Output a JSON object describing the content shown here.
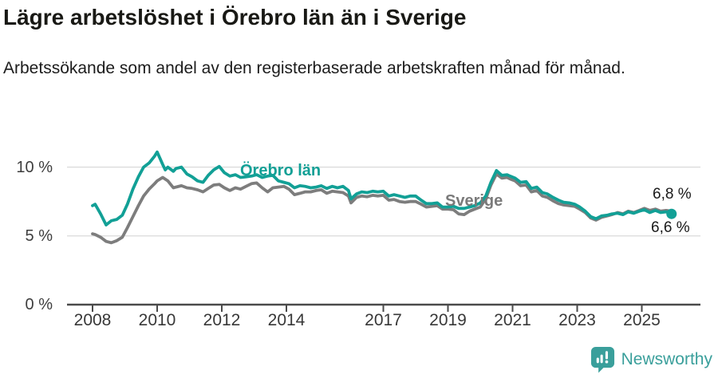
{
  "title": "Lägre arbetslöshet i Örebro län än i Sverige",
  "subtitle": "Arbetssökande som andel av den registerbaserade arbetskraften månad för månad.",
  "footer": {
    "brand": "Newsworthy"
  },
  "colors": {
    "accent_teal": "#12a096",
    "line_gray": "#7d7d7d",
    "grid": "#dcdcdc",
    "axis": "#4a4a4a",
    "text": "#191919",
    "brand_teal": "#3a9f9b"
  },
  "chart_data": {
    "type": "line",
    "unit": "%",
    "grid": "horizontal",
    "legend_position": "inline-labels",
    "x_axis": {
      "ticks": [
        2008,
        2010,
        2012,
        2014,
        2017,
        2019,
        2021,
        2023,
        2025
      ],
      "range": [
        2007.8,
        2026.1
      ]
    },
    "y_axis": {
      "ticks": [
        {
          "value": 0,
          "label": "0 %"
        },
        {
          "value": 5,
          "label": "5 %"
        },
        {
          "value": 10,
          "label": "10 %"
        }
      ],
      "range": [
        0,
        12.3
      ]
    },
    "series": [
      {
        "name": "Sverige",
        "inline_label": "Sverige",
        "end_label": "6,8 %",
        "end_value": 6.8,
        "color": "#7d7d7d",
        "end_dot": false,
        "points": [
          [
            2008.0,
            5.15
          ],
          [
            2008.08,
            5.1
          ],
          [
            2008.25,
            4.9
          ],
          [
            2008.42,
            4.6
          ],
          [
            2008.58,
            4.5
          ],
          [
            2008.75,
            4.65
          ],
          [
            2008.92,
            4.9
          ],
          [
            2009.08,
            5.6
          ],
          [
            2009.25,
            6.4
          ],
          [
            2009.42,
            7.2
          ],
          [
            2009.58,
            7.9
          ],
          [
            2009.75,
            8.4
          ],
          [
            2009.92,
            8.8
          ],
          [
            2010.0,
            9.0
          ],
          [
            2010.17,
            9.25
          ],
          [
            2010.33,
            9.0
          ],
          [
            2010.5,
            8.5
          ],
          [
            2010.58,
            8.55
          ],
          [
            2010.75,
            8.65
          ],
          [
            2010.92,
            8.5
          ],
          [
            2011.08,
            8.45
          ],
          [
            2011.25,
            8.35
          ],
          [
            2011.42,
            8.2
          ],
          [
            2011.58,
            8.45
          ],
          [
            2011.75,
            8.7
          ],
          [
            2011.92,
            8.75
          ],
          [
            2012.08,
            8.5
          ],
          [
            2012.25,
            8.3
          ],
          [
            2012.42,
            8.5
          ],
          [
            2012.58,
            8.4
          ],
          [
            2012.75,
            8.6
          ],
          [
            2012.92,
            8.8
          ],
          [
            2013.08,
            8.85
          ],
          [
            2013.25,
            8.5
          ],
          [
            2013.42,
            8.2
          ],
          [
            2013.58,
            8.5
          ],
          [
            2013.75,
            8.55
          ],
          [
            2013.92,
            8.6
          ],
          [
            2014.08,
            8.4
          ],
          [
            2014.25,
            8.0
          ],
          [
            2014.42,
            8.1
          ],
          [
            2014.58,
            8.2
          ],
          [
            2014.75,
            8.2
          ],
          [
            2014.92,
            8.3
          ],
          [
            2015.08,
            8.35
          ],
          [
            2015.25,
            8.1
          ],
          [
            2015.42,
            8.25
          ],
          [
            2015.58,
            8.2
          ],
          [
            2015.75,
            8.15
          ],
          [
            2015.92,
            7.9
          ],
          [
            2016.0,
            7.4
          ],
          [
            2016.17,
            7.8
          ],
          [
            2016.33,
            7.9
          ],
          [
            2016.5,
            7.85
          ],
          [
            2016.67,
            7.95
          ],
          [
            2016.83,
            7.9
          ],
          [
            2017.0,
            7.95
          ],
          [
            2017.17,
            7.6
          ],
          [
            2017.33,
            7.65
          ],
          [
            2017.5,
            7.5
          ],
          [
            2017.67,
            7.45
          ],
          [
            2017.83,
            7.5
          ],
          [
            2018.0,
            7.5
          ],
          [
            2018.17,
            7.3
          ],
          [
            2018.33,
            7.1
          ],
          [
            2018.5,
            7.15
          ],
          [
            2018.67,
            7.2
          ],
          [
            2018.83,
            6.95
          ],
          [
            2019.0,
            6.95
          ],
          [
            2019.17,
            6.9
          ],
          [
            2019.33,
            6.6
          ],
          [
            2019.5,
            6.55
          ],
          [
            2019.67,
            6.8
          ],
          [
            2019.83,
            6.95
          ],
          [
            2020.0,
            7.1
          ],
          [
            2020.17,
            7.7
          ],
          [
            2020.33,
            8.7
          ],
          [
            2020.5,
            9.5
          ],
          [
            2020.67,
            9.2
          ],
          [
            2020.83,
            9.25
          ],
          [
            2020.92,
            9.15
          ],
          [
            2021.08,
            9.0
          ],
          [
            2021.25,
            8.65
          ],
          [
            2021.42,
            8.7
          ],
          [
            2021.58,
            8.2
          ],
          [
            2021.75,
            8.3
          ],
          [
            2021.92,
            7.9
          ],
          [
            2022.08,
            7.8
          ],
          [
            2022.25,
            7.55
          ],
          [
            2022.42,
            7.35
          ],
          [
            2022.58,
            7.25
          ],
          [
            2022.75,
            7.2
          ],
          [
            2022.92,
            7.15
          ],
          [
            2023.08,
            6.95
          ],
          [
            2023.25,
            6.7
          ],
          [
            2023.42,
            6.3
          ],
          [
            2023.58,
            6.15
          ],
          [
            2023.75,
            6.35
          ],
          [
            2023.92,
            6.45
          ],
          [
            2024.08,
            6.55
          ],
          [
            2024.25,
            6.7
          ],
          [
            2024.42,
            6.6
          ],
          [
            2024.58,
            6.8
          ],
          [
            2024.75,
            6.7
          ],
          [
            2024.92,
            6.85
          ],
          [
            2025.08,
            7.0
          ],
          [
            2025.25,
            6.85
          ],
          [
            2025.42,
            6.95
          ],
          [
            2025.58,
            6.8
          ],
          [
            2025.75,
            6.85
          ],
          [
            2025.92,
            6.8
          ]
        ]
      },
      {
        "name": "Örebro län",
        "inline_label": "Örebro län",
        "end_label": "6,6 %",
        "end_value": 6.6,
        "color": "#12a096",
        "end_dot": true,
        "points": [
          [
            2008.0,
            7.2
          ],
          [
            2008.08,
            7.3
          ],
          [
            2008.25,
            6.6
          ],
          [
            2008.42,
            5.8
          ],
          [
            2008.58,
            6.1
          ],
          [
            2008.75,
            6.2
          ],
          [
            2008.92,
            6.5
          ],
          [
            2009.08,
            7.3
          ],
          [
            2009.25,
            8.4
          ],
          [
            2009.42,
            9.3
          ],
          [
            2009.58,
            10.0
          ],
          [
            2009.75,
            10.3
          ],
          [
            2009.92,
            10.8
          ],
          [
            2010.0,
            11.1
          ],
          [
            2010.17,
            10.2
          ],
          [
            2010.25,
            9.8
          ],
          [
            2010.33,
            10.0
          ],
          [
            2010.5,
            9.7
          ],
          [
            2010.58,
            9.9
          ],
          [
            2010.75,
            10.0
          ],
          [
            2010.92,
            9.5
          ],
          [
            2011.08,
            9.3
          ],
          [
            2011.25,
            9.0
          ],
          [
            2011.42,
            8.9
          ],
          [
            2011.58,
            9.4
          ],
          [
            2011.75,
            9.8
          ],
          [
            2011.92,
            10.05
          ],
          [
            2012.08,
            9.6
          ],
          [
            2012.25,
            9.35
          ],
          [
            2012.42,
            9.45
          ],
          [
            2012.58,
            9.25
          ],
          [
            2012.75,
            9.3
          ],
          [
            2012.92,
            9.35
          ],
          [
            2013.08,
            9.45
          ],
          [
            2013.25,
            9.25
          ],
          [
            2013.42,
            9.35
          ],
          [
            2013.58,
            9.4
          ],
          [
            2013.75,
            9.0
          ],
          [
            2013.92,
            8.9
          ],
          [
            2014.08,
            8.8
          ],
          [
            2014.25,
            8.5
          ],
          [
            2014.42,
            8.65
          ],
          [
            2014.58,
            8.6
          ],
          [
            2014.75,
            8.5
          ],
          [
            2014.92,
            8.55
          ],
          [
            2015.08,
            8.65
          ],
          [
            2015.25,
            8.45
          ],
          [
            2015.42,
            8.6
          ],
          [
            2015.58,
            8.5
          ],
          [
            2015.75,
            8.6
          ],
          [
            2015.92,
            8.3
          ],
          [
            2016.0,
            7.7
          ],
          [
            2016.17,
            8.05
          ],
          [
            2016.33,
            8.2
          ],
          [
            2016.5,
            8.15
          ],
          [
            2016.67,
            8.25
          ],
          [
            2016.83,
            8.2
          ],
          [
            2017.0,
            8.25
          ],
          [
            2017.17,
            7.9
          ],
          [
            2017.33,
            8.0
          ],
          [
            2017.5,
            7.9
          ],
          [
            2017.67,
            7.8
          ],
          [
            2017.83,
            7.9
          ],
          [
            2018.0,
            7.9
          ],
          [
            2018.17,
            7.6
          ],
          [
            2018.33,
            7.35
          ],
          [
            2018.5,
            7.35
          ],
          [
            2018.67,
            7.4
          ],
          [
            2018.83,
            7.1
          ],
          [
            2019.0,
            7.1
          ],
          [
            2019.17,
            7.15
          ],
          [
            2019.33,
            7.0
          ],
          [
            2019.5,
            7.0
          ],
          [
            2019.67,
            7.1
          ],
          [
            2019.83,
            7.2
          ],
          [
            2020.0,
            7.4
          ],
          [
            2020.17,
            7.9
          ],
          [
            2020.33,
            8.9
          ],
          [
            2020.5,
            9.75
          ],
          [
            2020.67,
            9.4
          ],
          [
            2020.83,
            9.45
          ],
          [
            2020.92,
            9.35
          ],
          [
            2021.08,
            9.2
          ],
          [
            2021.25,
            8.9
          ],
          [
            2021.42,
            8.95
          ],
          [
            2021.58,
            8.45
          ],
          [
            2021.75,
            8.55
          ],
          [
            2021.92,
            8.15
          ],
          [
            2022.08,
            8.05
          ],
          [
            2022.25,
            7.8
          ],
          [
            2022.42,
            7.6
          ],
          [
            2022.58,
            7.45
          ],
          [
            2022.75,
            7.4
          ],
          [
            2022.92,
            7.3
          ],
          [
            2023.08,
            7.1
          ],
          [
            2023.25,
            6.8
          ],
          [
            2023.42,
            6.4
          ],
          [
            2023.58,
            6.25
          ],
          [
            2023.75,
            6.45
          ],
          [
            2023.92,
            6.5
          ],
          [
            2024.08,
            6.6
          ],
          [
            2024.25,
            6.65
          ],
          [
            2024.42,
            6.55
          ],
          [
            2024.58,
            6.75
          ],
          [
            2024.75,
            6.65
          ],
          [
            2024.92,
            6.8
          ],
          [
            2025.08,
            6.9
          ],
          [
            2025.25,
            6.7
          ],
          [
            2025.42,
            6.85
          ],
          [
            2025.58,
            6.7
          ],
          [
            2025.75,
            6.75
          ],
          [
            2025.92,
            6.6
          ]
        ]
      }
    ]
  }
}
